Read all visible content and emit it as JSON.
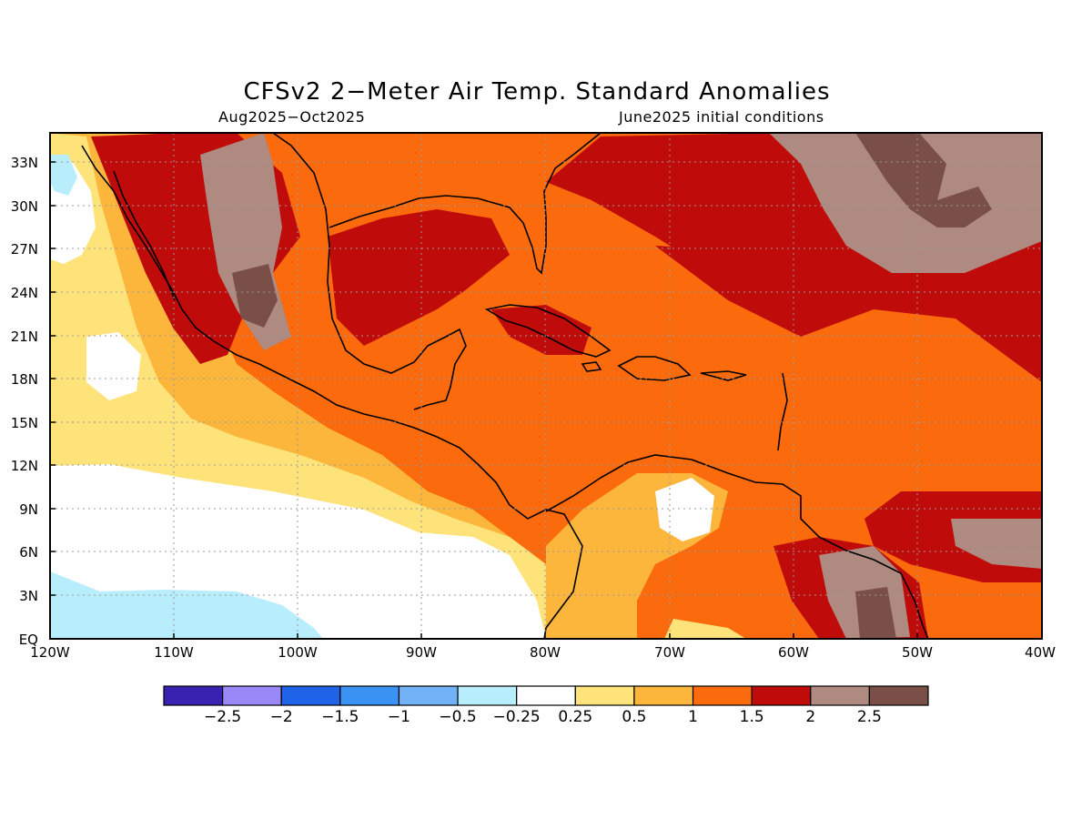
{
  "title": "CFSv2 2−Meter Air Temp. Standard Anomalies",
  "subtitle_left": "Aug2025−Oct2025",
  "subtitle_right": "June2025 initial conditions",
  "map": {
    "lon_range": [
      -120,
      -40
    ],
    "lat_range": [
      0,
      35
    ],
    "y_ticks": [
      "33N",
      "30N",
      "27N",
      "24N",
      "21N",
      "18N",
      "15N",
      "12N",
      "9N",
      "6N",
      "3N",
      "EQ"
    ],
    "x_ticks": [
      "120W",
      "110W",
      "100W",
      "90W",
      "80W",
      "70W",
      "60W",
      "50W",
      "40W"
    ],
    "grid": "dotted"
  },
  "colorbar": {
    "colors": [
      "#3a22b0",
      "#9a88f8",
      "#1f64e8",
      "#3a92f2",
      "#70b2f5",
      "#b8eefc",
      "#ffffff",
      "#fde37a",
      "#fbb63b",
      "#fb6a0c",
      "#c00b0b",
      "#ae8a80",
      "#7a4f47"
    ],
    "labels": [
      "−2.5",
      "−2",
      "−1.5",
      "−1",
      "−0.5",
      "−0.25",
      "0.25",
      "0.5",
      "1",
      "1.5",
      "2",
      "2.5"
    ]
  }
}
